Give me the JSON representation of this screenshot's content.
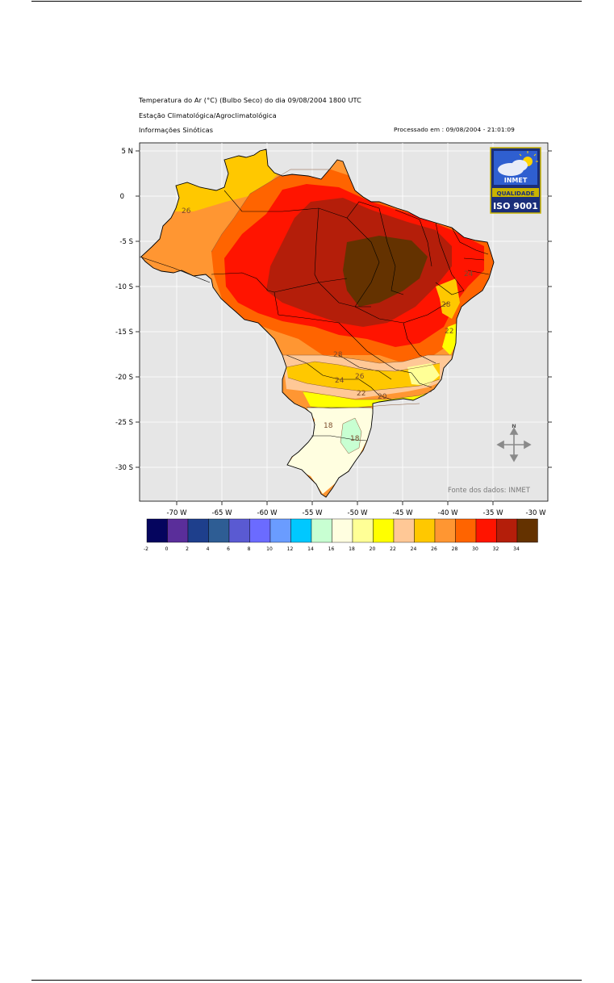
{
  "header": {
    "title": "Temperatura do Ar (°C) (Bulbo Seco) do dia 09/08/2004 1800 UTC",
    "line2": "Estação Climatológica/Agroclimatológica",
    "line3": "Informações Sinóticas",
    "processed": "Processado em : 09/08/2004 - 21:01:09"
  },
  "map": {
    "lat_labels": [
      "5 N",
      "0",
      "-5 S",
      "-10 S",
      "-15 S",
      "-20 S",
      "-25 S",
      "-30 S"
    ],
    "lon_labels": [
      "-70 W",
      "-65 W",
      "-60 W",
      "-55 W",
      "-50 W",
      "-45 W",
      "-40 W",
      "-35 W",
      "-30 W"
    ],
    "source": "Fonte dos dados: INMET",
    "contour_labels": [
      "26",
      "28",
      "26",
      "24",
      "22",
      "20",
      "18",
      "18",
      "22",
      "24",
      "28"
    ],
    "background_color": "#e6e6e6"
  },
  "logo": {
    "name": "INMET",
    "line1": "QUALIDADE",
    "line2": "ISO 9001"
  },
  "compass": {
    "label": "N"
  },
  "legend": {
    "tick_labels": [
      "-2",
      "0",
      "2",
      "4",
      "6",
      "8",
      "10",
      "12",
      "14",
      "16",
      "18",
      "20",
      "22",
      "24",
      "26",
      "28",
      "30",
      "32",
      "34"
    ],
    "colors": [
      "#05055e",
      "#5a2e9a",
      "#1e3f8c",
      "#2e5d94",
      "#5a5ad2",
      "#6b6bff",
      "#6a9cff",
      "#00c8ff",
      "#c8ffd2",
      "#fffee0",
      "#ffff96",
      "#ffff00",
      "#ffc896",
      "#ffc800",
      "#ff9632",
      "#ff6400",
      "#ff1400",
      "#b41e0a",
      "#643200"
    ]
  }
}
